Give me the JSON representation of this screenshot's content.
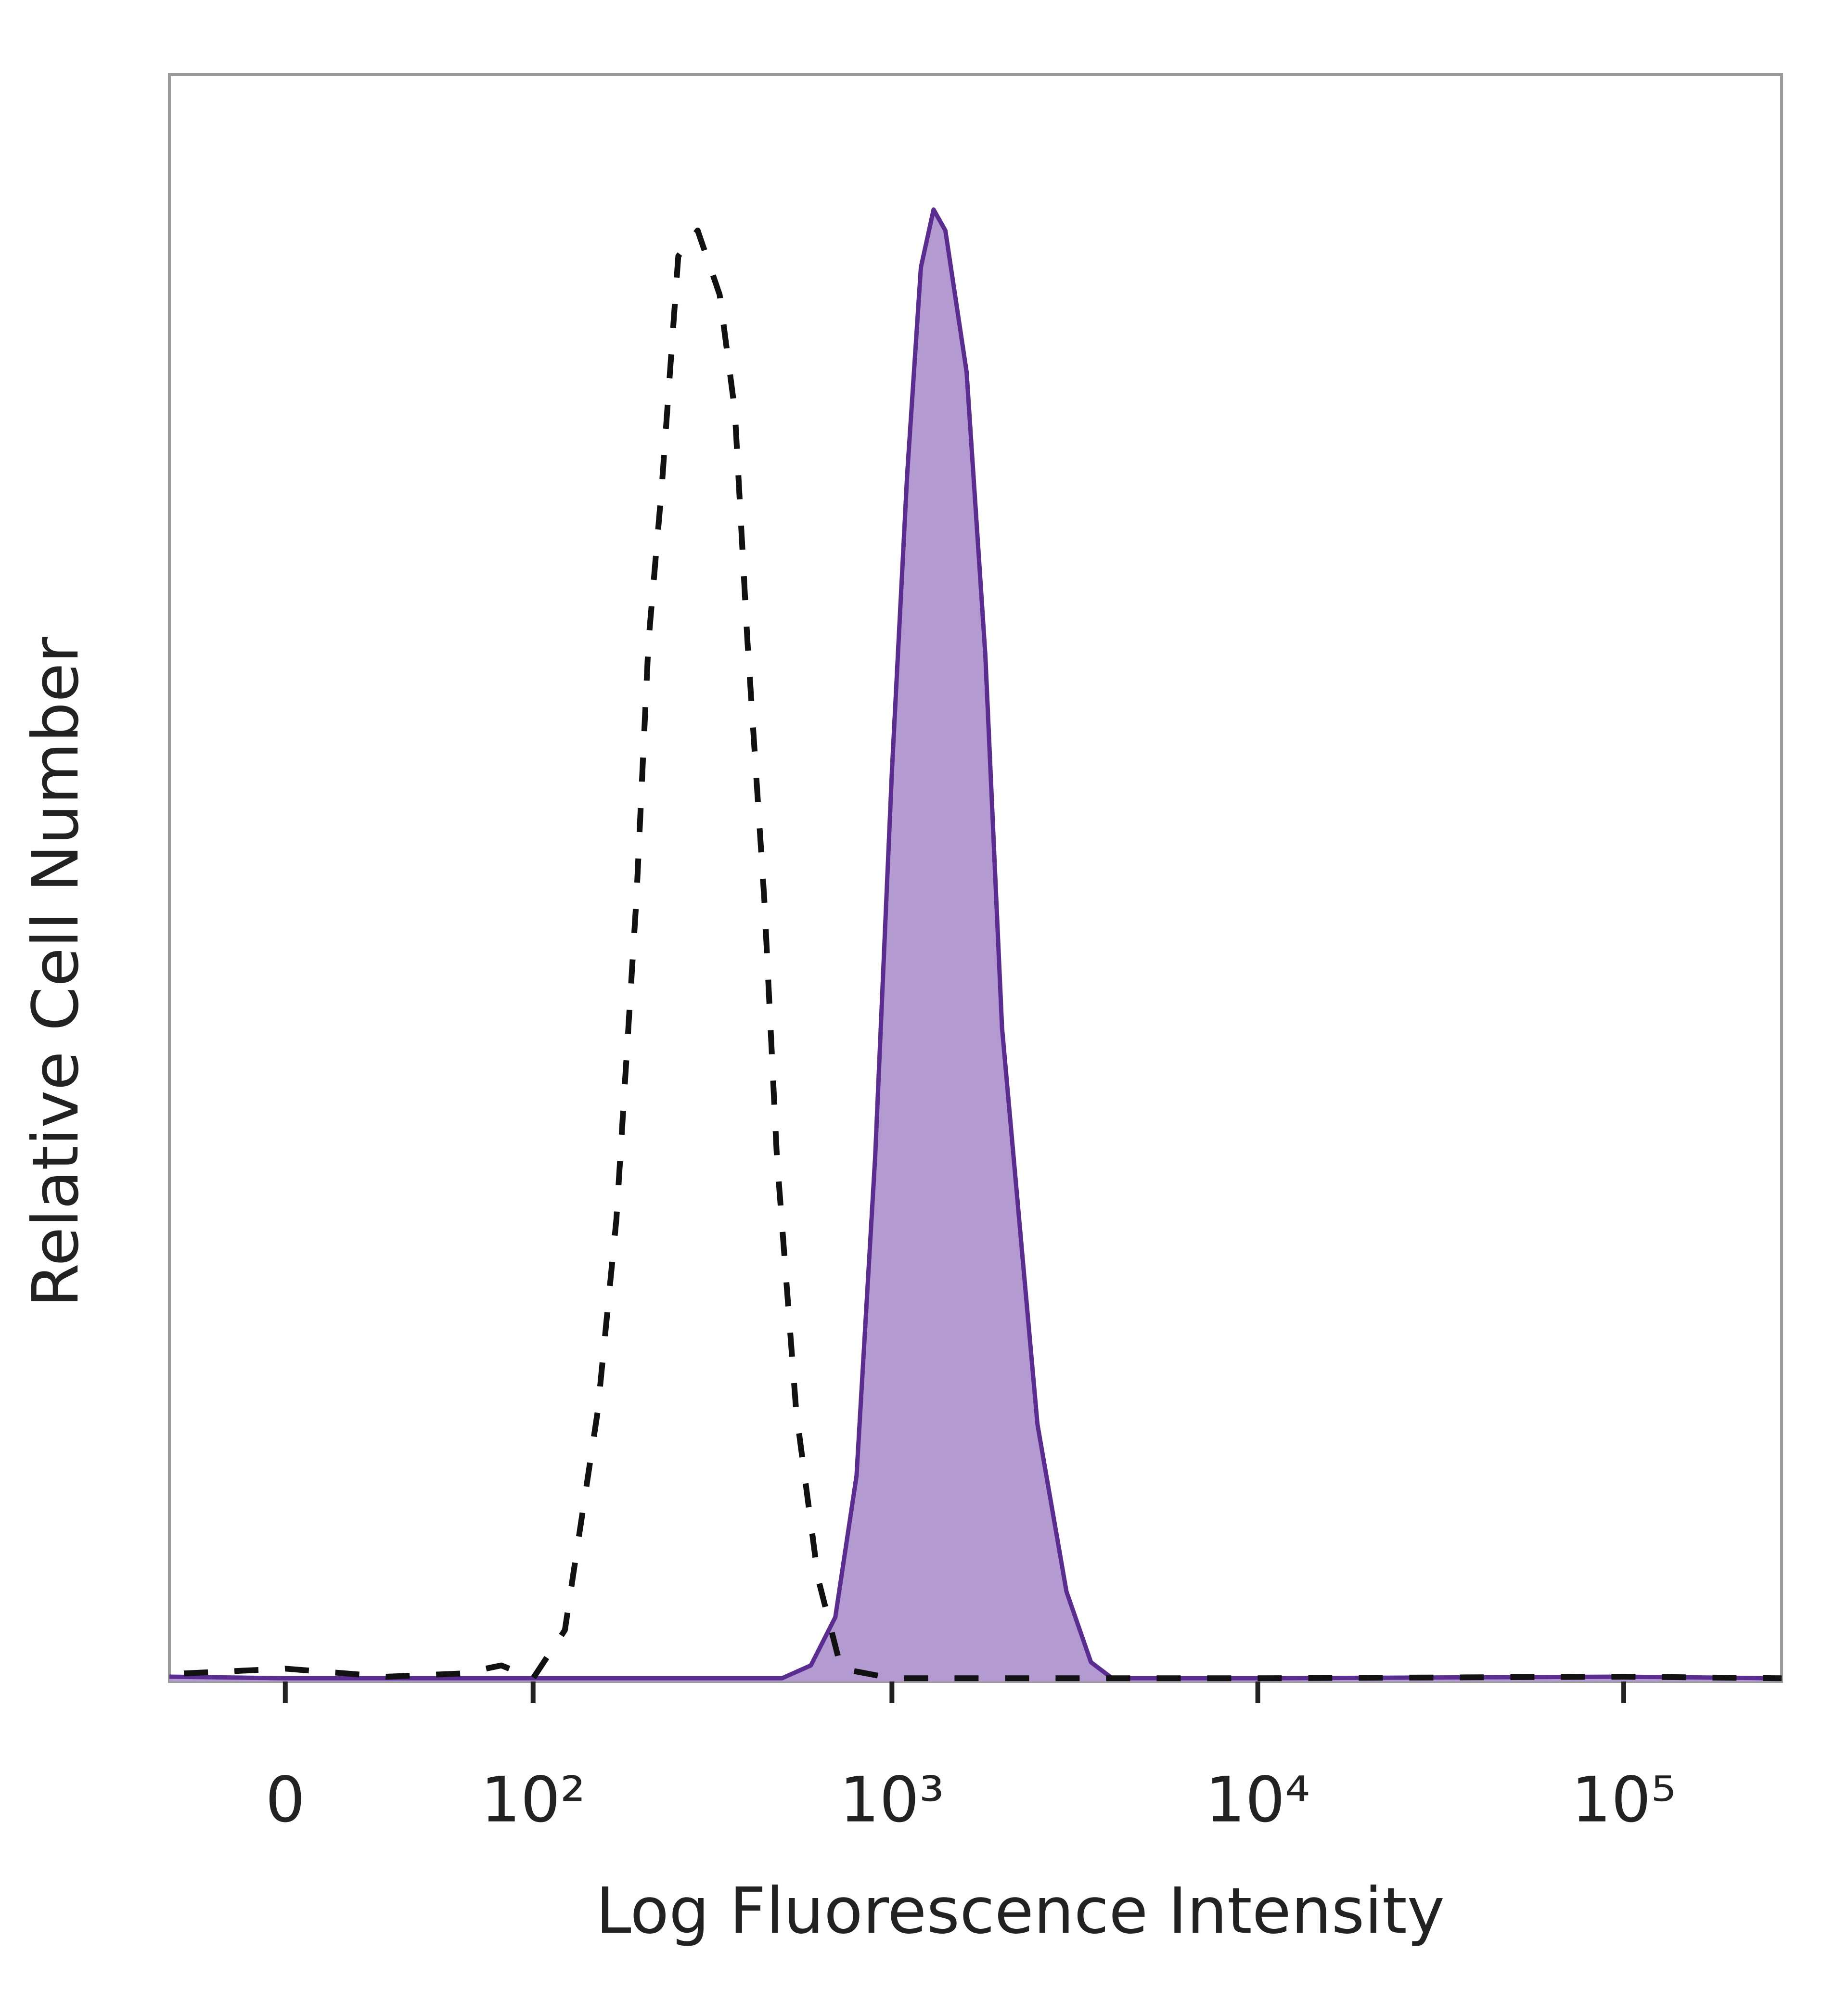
{
  "chart_data": {
    "type": "area",
    "xlabel": "Log Fluorescence Intensity",
    "ylabel": "Relative Cell Number",
    "xscale": "biexponential",
    "xlim": [
      -35,
      270000
    ],
    "xticks": [
      0,
      {
        "value": 100,
        "label": "10²"
      },
      {
        "value": 1000,
        "label": "10³"
      },
      {
        "value": 10000,
        "label": "10⁴"
      },
      {
        "value": 100000,
        "label": "10⁵"
      }
    ],
    "ylim": [
      0,
      100
    ],
    "series": [
      {
        "color": "#5b2d90",
        "fill": "#b39ad0",
        "dashed": false,
        "x": [
          -35,
          0,
          100,
          300,
          500,
          600,
          700,
          800,
          900,
          1000,
          1100,
          1200,
          1300,
          1400,
          1600,
          1800,
          2000,
          2500,
          3000,
          3500,
          4000,
          10000,
          100000,
          270000
        ],
        "values": [
          0.3,
          0.2,
          0.2,
          0.2,
          0.2,
          1.0,
          4,
          12.8,
          32.7,
          56.7,
          75,
          88,
          91.6,
          90.3,
          81.5,
          63.9,
          40.7,
          16,
          5.6,
          1.2,
          0.2,
          0.2,
          0.3,
          0.2
        ]
      },
      {
        "color": "#111111",
        "fill": null,
        "dashed": true,
        "x": [
          -30,
          0,
          30,
          60,
          80,
          100,
          124,
          154,
          174,
          198,
          214,
          233,
          259,
          293,
          337,
          371,
          402,
          447,
          484,
          547,
          628,
          726,
          1000,
          10000,
          100000,
          270000
        ],
        "values": [
          0.5,
          0.8,
          0.3,
          0.5,
          1,
          0.2,
          3.2,
          16.8,
          28.8,
          48.7,
          64.7,
          74.3,
          88.7,
          90.3,
          86.3,
          79.1,
          64.7,
          48.7,
          32.7,
          16.8,
          6.4,
          0.8,
          0.2,
          0.2,
          0.3,
          0.2
        ]
      }
    ]
  }
}
